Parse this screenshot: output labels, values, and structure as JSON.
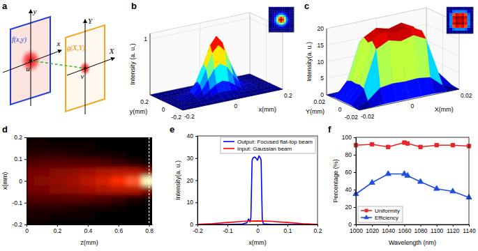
{
  "diagram": {
    "label": "a",
    "input_plane": "f(x,y)",
    "output_plane": "g(X,Y)",
    "input_axes": {
      "x": "x",
      "y": "y"
    },
    "output_axes": {
      "x": "X",
      "y": "Y"
    },
    "input_point": "u",
    "output_point": "v"
  },
  "chart_data": [
    {
      "type": "surface",
      "label": "b",
      "x_label": "x(mm)",
      "y_label": "y(mm)",
      "z_label": "Intensity (a. u.)",
      "x": [
        -0.2,
        -0.15,
        -0.1,
        -0.075,
        -0.05,
        -0.025,
        0,
        0.025,
        0.05,
        0.075,
        0.1,
        0.15,
        0.2
      ],
      "y": [
        -0.2,
        -0.15,
        -0.1,
        -0.075,
        -0.05,
        -0.025,
        0,
        0.025,
        0.05,
        0.075,
        0.1,
        0.15,
        0.2
      ],
      "values": [
        [
          0,
          0,
          0,
          0,
          0,
          0,
          0,
          0,
          0,
          0,
          0,
          0,
          0
        ],
        [
          0,
          0,
          0,
          0.001,
          0.002,
          0.003,
          0.004,
          0.003,
          0.002,
          0.001,
          0,
          0,
          0
        ],
        [
          0,
          0,
          0.007,
          0.021,
          0.046,
          0.073,
          0.085,
          0.073,
          0.046,
          0.021,
          0.007,
          0,
          0
        ],
        [
          0,
          0.001,
          0.021,
          0.062,
          0.134,
          0.213,
          0.249,
          0.213,
          0.134,
          0.062,
          0.021,
          0.001,
          0
        ],
        [
          0,
          0.002,
          0.046,
          0.134,
          0.292,
          0.463,
          0.54,
          0.463,
          0.292,
          0.134,
          0.046,
          0.002,
          0
        ],
        [
          0,
          0.003,
          0.073,
          0.213,
          0.463,
          0.734,
          0.857,
          0.734,
          0.463,
          0.213,
          0.073,
          0.003,
          0
        ],
        [
          0,
          0.004,
          0.085,
          0.249,
          0.54,
          0.857,
          1,
          0.857,
          0.54,
          0.249,
          0.085,
          0.004,
          0
        ],
        [
          0,
          0.003,
          0.073,
          0.213,
          0.463,
          0.734,
          0.857,
          0.734,
          0.463,
          0.213,
          0.073,
          0.003,
          0
        ],
        [
          0,
          0.002,
          0.046,
          0.134,
          0.292,
          0.463,
          0.54,
          0.463,
          0.292,
          0.134,
          0.046,
          0.002,
          0
        ],
        [
          0,
          0.001,
          0.021,
          0.062,
          0.134,
          0.213,
          0.249,
          0.213,
          0.134,
          0.062,
          0.021,
          0.001,
          0
        ],
        [
          0,
          0,
          0.007,
          0.021,
          0.046,
          0.073,
          0.085,
          0.073,
          0.046,
          0.021,
          0.007,
          0,
          0
        ],
        [
          0,
          0,
          0,
          0.001,
          0.002,
          0.003,
          0.004,
          0.003,
          0.002,
          0.001,
          0,
          0,
          0
        ],
        [
          0,
          0,
          0,
          0,
          0,
          0,
          0,
          0,
          0,
          0,
          0,
          0,
          0
        ]
      ],
      "xlim": [
        -0.2,
        0.2
      ],
      "ylim": [
        -0.2,
        0.2
      ],
      "zlim": [
        0,
        1.1
      ],
      "xticks": [
        -0.2,
        0,
        0.2
      ],
      "yticks": [
        -0.2,
        0,
        0.2
      ],
      "zticks": [
        1
      ]
    },
    {
      "type": "surface",
      "label": "c",
      "x_label": "X(mm)",
      "y_label": "Y(mm)",
      "z_label": "Intensity(a. u.)",
      "x": [
        -0.02,
        -0.015,
        -0.01,
        -0.005,
        0,
        0.005,
        0.01,
        0.015,
        0.02
      ],
      "y": [
        -0.02,
        -0.015,
        -0.01,
        -0.005,
        0,
        0.005,
        0.01,
        0.015,
        0.02
      ],
      "values": [
        [
          0,
          0.1,
          0.3,
          0.3,
          0.3,
          0.3,
          0.3,
          0.1,
          0
        ],
        [
          0.1,
          1.4,
          4.6,
          5.1,
          4.9,
          5.1,
          4.6,
          1.4,
          0.1
        ],
        [
          0.3,
          4.6,
          15.6,
          17.5,
          16.5,
          17.5,
          15.6,
          4.6,
          0.3
        ],
        [
          0.3,
          5.1,
          17.5,
          19.5,
          18.5,
          19.5,
          17.5,
          5.1,
          0.3
        ],
        [
          0.3,
          4.9,
          16.5,
          18.5,
          17.5,
          18.5,
          16.5,
          4.9,
          0.3
        ],
        [
          0.3,
          5.1,
          17.5,
          19.5,
          18.5,
          19.5,
          17.5,
          5.1,
          0.3
        ],
        [
          0.3,
          4.6,
          15.6,
          17.5,
          16.5,
          17.5,
          15.6,
          4.6,
          0.3
        ],
        [
          0.1,
          1.4,
          4.6,
          5.1,
          4.9,
          5.1,
          4.6,
          1.4,
          0.1
        ],
        [
          0,
          0.1,
          0.3,
          0.3,
          0.3,
          0.3,
          0.3,
          0.1,
          0
        ]
      ],
      "xlim": [
        -0.02,
        0.02
      ],
      "ylim": [
        -0.02,
        0.02
      ],
      "zlim": [
        0,
        20
      ],
      "xticks": [
        -0.02,
        0,
        0.02
      ],
      "yticks": [
        -0.02,
        0,
        0.02
      ],
      "zticks": [
        0,
        5,
        10,
        15,
        20
      ]
    },
    {
      "type": "heatmap",
      "label": "d",
      "x_label": "z(mm)",
      "y_label": "x(mm)",
      "x": [
        0,
        0.1,
        0.2,
        0.3,
        0.4,
        0.5,
        0.6,
        0.7,
        0.8
      ],
      "y": [
        -0.2,
        -0.16,
        -0.12,
        -0.08,
        -0.04,
        0,
        0.04,
        0.08,
        0.12,
        0.16,
        0.2
      ],
      "values": [
        [
          0.01,
          0.01,
          0,
          0,
          0,
          0,
          0,
          0,
          0
        ],
        [
          0.02,
          0.02,
          0.01,
          0.01,
          0.01,
          0,
          0,
          0,
          0
        ],
        [
          0.04,
          0.04,
          0.04,
          0.03,
          0.02,
          0.02,
          0.01,
          0,
          0
        ],
        [
          0.07,
          0.08,
          0.08,
          0.08,
          0.08,
          0.07,
          0.05,
          0.03,
          0.01
        ],
        [
          0.11,
          0.12,
          0.14,
          0.16,
          0.19,
          0.21,
          0.23,
          0.22,
          0.15
        ],
        [
          0.12,
          0.14,
          0.16,
          0.19,
          0.23,
          0.28,
          0.36,
          0.5,
          1
        ],
        [
          0.11,
          0.12,
          0.14,
          0.16,
          0.19,
          0.21,
          0.23,
          0.22,
          0.15
        ],
        [
          0.07,
          0.08,
          0.08,
          0.08,
          0.08,
          0.07,
          0.05,
          0.03,
          0.01
        ],
        [
          0.04,
          0.04,
          0.04,
          0.03,
          0.02,
          0.02,
          0.01,
          0,
          0
        ],
        [
          0.02,
          0.02,
          0.01,
          0.01,
          0.01,
          0,
          0,
          0,
          0
        ],
        [
          0.01,
          0.01,
          0,
          0,
          0,
          0,
          0,
          0,
          0
        ]
      ],
      "focal_plane": 0.8,
      "xlim": [
        0,
        0.82
      ],
      "ylim": [
        -0.2,
        0.2
      ],
      "xticks": [
        0,
        0.2,
        0.4,
        0.6,
        0.8
      ],
      "yticks": [
        -0.2,
        -0.1,
        0,
        0.1,
        0.2
      ]
    },
    {
      "type": "line",
      "label": "e",
      "x_label": "x(mm)",
      "y_label": "Intensity(a. u.)",
      "series": [
        {
          "name": "Output: Focused flat-top beam",
          "color": "#0000ff",
          "x": [
            -0.2,
            -0.1,
            -0.05,
            -0.035,
            -0.03,
            -0.025,
            -0.022,
            -0.018,
            -0.015,
            -0.01,
            -0.005,
            0,
            0.005,
            0.01,
            0.012,
            0.016,
            0.02,
            0.05,
            0.1,
            0.2
          ],
          "values": [
            0,
            0,
            0.2,
            0.8,
            2.5,
            1.2,
            3,
            29,
            30,
            30.5,
            30,
            29,
            31,
            30,
            29,
            2,
            0.3,
            0,
            0,
            0
          ]
        },
        {
          "name": "Input: Gaussian beam",
          "color": "#ff0000",
          "x": [
            -0.2,
            -0.15,
            -0.1,
            -0.05,
            0,
            0.05,
            0.1,
            0.15,
            0.2
          ],
          "values": [
            0.1,
            0.4,
            0.9,
            1.4,
            1.6,
            1.4,
            0.9,
            0.4,
            0.1
          ]
        }
      ],
      "xlim": [
        -0.2,
        0.2
      ],
      "ylim": [
        0,
        40
      ],
      "xticks": [
        -0.2,
        -0.1,
        0,
        0.1,
        0.2
      ],
      "yticks": [
        0,
        10,
        20,
        30,
        40
      ],
      "legend": "upper right"
    },
    {
      "type": "line",
      "label": "f",
      "x_label": "Wavelength (nm)",
      "y_label": "Percentage (%)",
      "x": [
        1000,
        1020,
        1040,
        1060,
        1064,
        1080,
        1100,
        1120,
        1140
      ],
      "series": [
        {
          "name": "Uniformity",
          "color": "#e8262a",
          "marker": "square",
          "values": [
            91,
            92,
            89,
            94,
            93,
            89,
            91,
            91,
            90
          ]
        },
        {
          "name": "Efficiency",
          "color": "#1f4fe0",
          "marker": "triangle",
          "values": [
            35,
            48,
            58,
            58,
            56,
            49,
            41,
            38,
            31
          ]
        }
      ],
      "xlim": [
        1000,
        1140
      ],
      "ylim": [
        0,
        100
      ],
      "xticks": [
        1000,
        1020,
        1040,
        1060,
        1080,
        1100,
        1120,
        1140
      ],
      "yticks": [
        0,
        20,
        40,
        60,
        80,
        100
      ],
      "legend": "lower left"
    }
  ]
}
